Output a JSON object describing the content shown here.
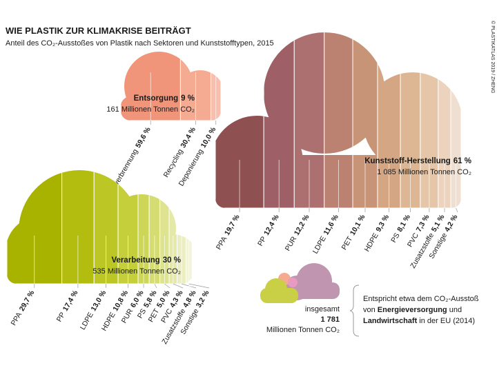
{
  "title": "WIE PLASTIK ZUR KLIMAKRISE BEITRÄGT",
  "subtitle": "Anteil des CO₂-Ausstoßes von Plastik nach Sektoren und Kunststofftypen, 2015",
  "credit": "© PLASTIKATLAS 2019 / ZHENG",
  "chart_data": [
    {
      "type": "cloud",
      "title": "Entsorgung",
      "share": 9,
      "share_label": "9 %",
      "subtitle": "161 Millionen Tonnen CO₂",
      "categories": [
        "Müllverbrennung",
        "Recycling",
        "Deponierung"
      ],
      "values": [
        59.6,
        30.4,
        10.0
      ],
      "value_labels": [
        "59,6 %",
        "30,4 %",
        "10,0 %"
      ],
      "colors": [
        "#f0957a",
        "#f5aa92",
        "#f9bfae"
      ]
    },
    {
      "type": "cloud",
      "title": "Kunststoff-Herstellung",
      "share": 61,
      "share_label": "61 %",
      "subtitle": "1 085 Millionen Tonnen CO₂",
      "categories": [
        "PPA",
        "PP",
        "PUR",
        "LDPE",
        "PET",
        "HDPE",
        "PS",
        "PVC",
        "Zusatzstoffe",
        "Sonstige"
      ],
      "values": [
        19.7,
        12.4,
        12.2,
        11.6,
        10.1,
        9.3,
        8.1,
        7.3,
        5.1,
        4.2
      ],
      "value_labels": [
        "19,7 %",
        "12,4 %",
        "12,2 %",
        "11,6 %",
        "10,1 %",
        "9,3 %",
        "8,1 %",
        "7,3 %",
        "5,1 %",
        "4,2 %"
      ],
      "colors": [
        "#8f5052",
        "#9e5f66",
        "#ad7070",
        "#bb8272",
        "#c89478",
        "#d4a684",
        "#ddb793",
        "#e5c6a8",
        "#ebd3be",
        "#efdfd1"
      ]
    },
    {
      "type": "cloud",
      "title": "Verarbeitung",
      "share": 30,
      "share_label": "30 %",
      "subtitle": "535 Millionen Tonnen CO₂",
      "categories": [
        "PPA",
        "PP",
        "LDPE",
        "HDPE",
        "PUR",
        "PS",
        "PET",
        "PVC",
        "Zusatzstoffe",
        "Sonstige"
      ],
      "values": [
        29.7,
        17.4,
        13.0,
        10.8,
        6.0,
        5.8,
        5.0,
        4.3,
        4.8,
        3.2
      ],
      "value_labels": [
        "29,7 %",
        "17,4 %",
        "13,0 %",
        "10,8 %",
        "6,0 %",
        "5,8 %",
        "5,0 %",
        "4,3 %",
        "4,8 %",
        "3,2 %"
      ],
      "colors": [
        "#a8b300",
        "#b2bd10",
        "#bcc625",
        "#c5cf3c",
        "#cdd657",
        "#d5dd72",
        "#dde38e",
        "#e4e9a8",
        "#ebeec2",
        "#f1f3da"
      ]
    }
  ],
  "total": {
    "prefix": "insgesamt",
    "value": "1 781",
    "unit": "Millionen Tonnen CO₂"
  },
  "note": [
    "Entspricht etwa dem CO₂-Ausstoß",
    "von ",
    "Energieversorgung",
    " und",
    "Landwirtschaft",
    " in der EU (2014)"
  ]
}
